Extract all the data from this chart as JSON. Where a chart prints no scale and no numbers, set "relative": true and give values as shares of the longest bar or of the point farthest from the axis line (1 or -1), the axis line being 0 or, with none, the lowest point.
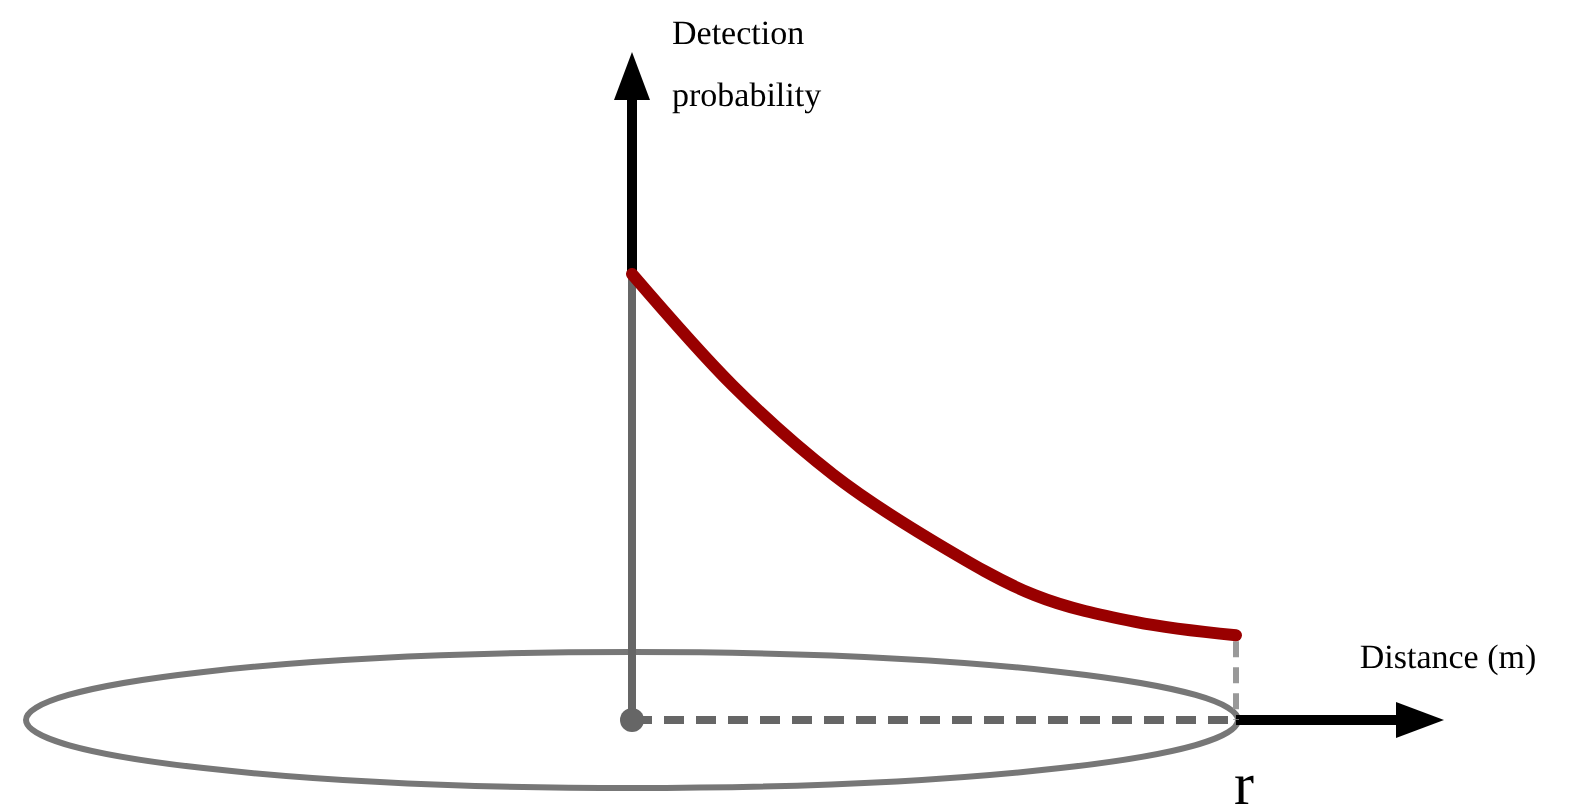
{
  "chart_data": {
    "type": "line",
    "relative": true,
    "xlabel": "Distance (m)",
    "ylabel": "Detection probability",
    "annotations": [
      "r"
    ],
    "categories": [
      null,
      null,
      null,
      null,
      null,
      null,
      null
    ],
    "series": [
      {
        "color": "#990000",
        "values": [
          1,
          0.75,
          0.55,
          0.4,
          0.28,
          0.22,
          0.19
        ]
      }
    ],
    "line_style": "solid"
  }
}
